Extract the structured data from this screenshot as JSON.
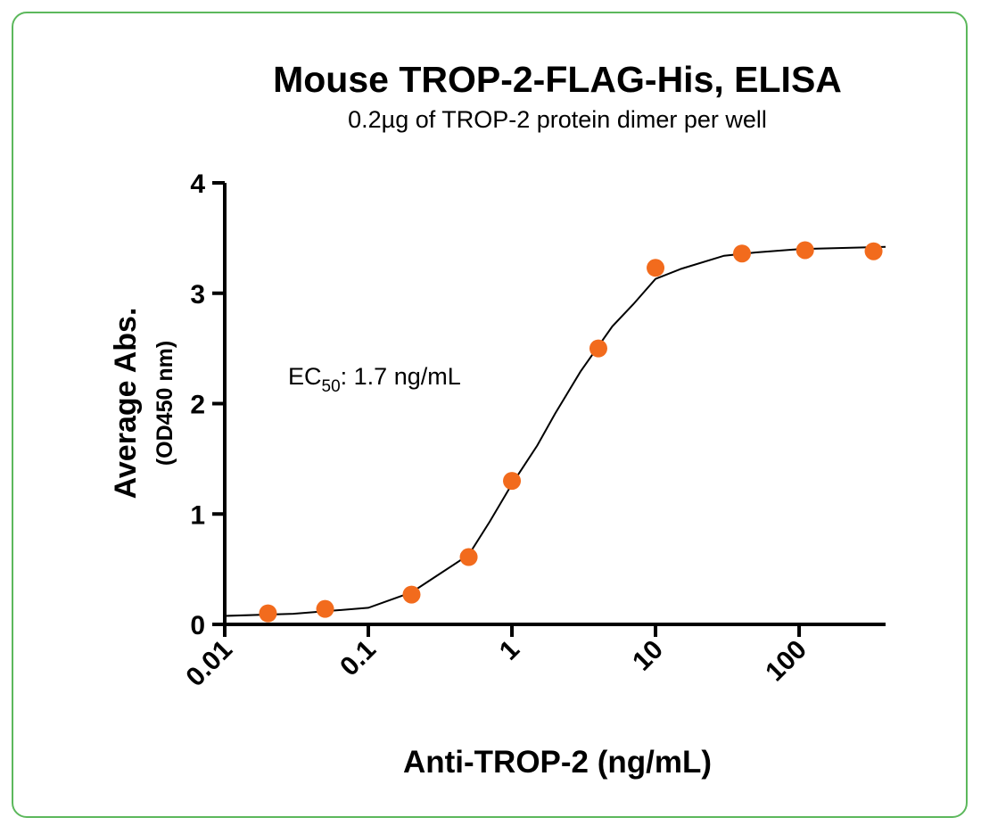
{
  "chart_data": {
    "type": "scatter",
    "title": "Mouse TROP-2-FLAG-His, ELISA",
    "subtitle": "0.2µg of TROP-2 protein dimer per well",
    "xlabel": "Anti-TROP-2 (ng/mL)",
    "ylabel": [
      "Average Abs.",
      "(OD450 nm)"
    ],
    "annotation": {
      "prefix": "EC",
      "subscript": "50",
      "suffix": ": 1.7 ng/mL"
    },
    "xscale": "log",
    "xlim": [
      0.01,
      400
    ],
    "ylim": [
      0,
      4
    ],
    "xticks": [
      0.01,
      0.1,
      1,
      10,
      100
    ],
    "yticks": [
      0,
      1,
      2,
      3,
      4
    ],
    "series": [
      {
        "color": "#f26b1d",
        "x": [
          0.02,
          0.05,
          0.2,
          0.5,
          1,
          4,
          10,
          40,
          110,
          330
        ],
        "values": [
          0.1,
          0.14,
          0.27,
          0.61,
          1.3,
          2.5,
          3.23,
          3.36,
          3.39,
          3.38
        ]
      }
    ],
    "curve": {
      "color": "#000000",
      "x": [
        0.01,
        0.03,
        0.1,
        0.2,
        0.3,
        0.5,
        0.7,
        1,
        1.5,
        2,
        3,
        5,
        7,
        10,
        15,
        30,
        50,
        100,
        400
      ],
      "values": [
        0.077,
        0.096,
        0.15,
        0.29,
        0.44,
        0.63,
        0.93,
        1.27,
        1.62,
        1.91,
        2.29,
        2.7,
        2.9,
        3.13,
        3.22,
        3.34,
        3.37,
        3.4,
        3.42
      ]
    }
  }
}
